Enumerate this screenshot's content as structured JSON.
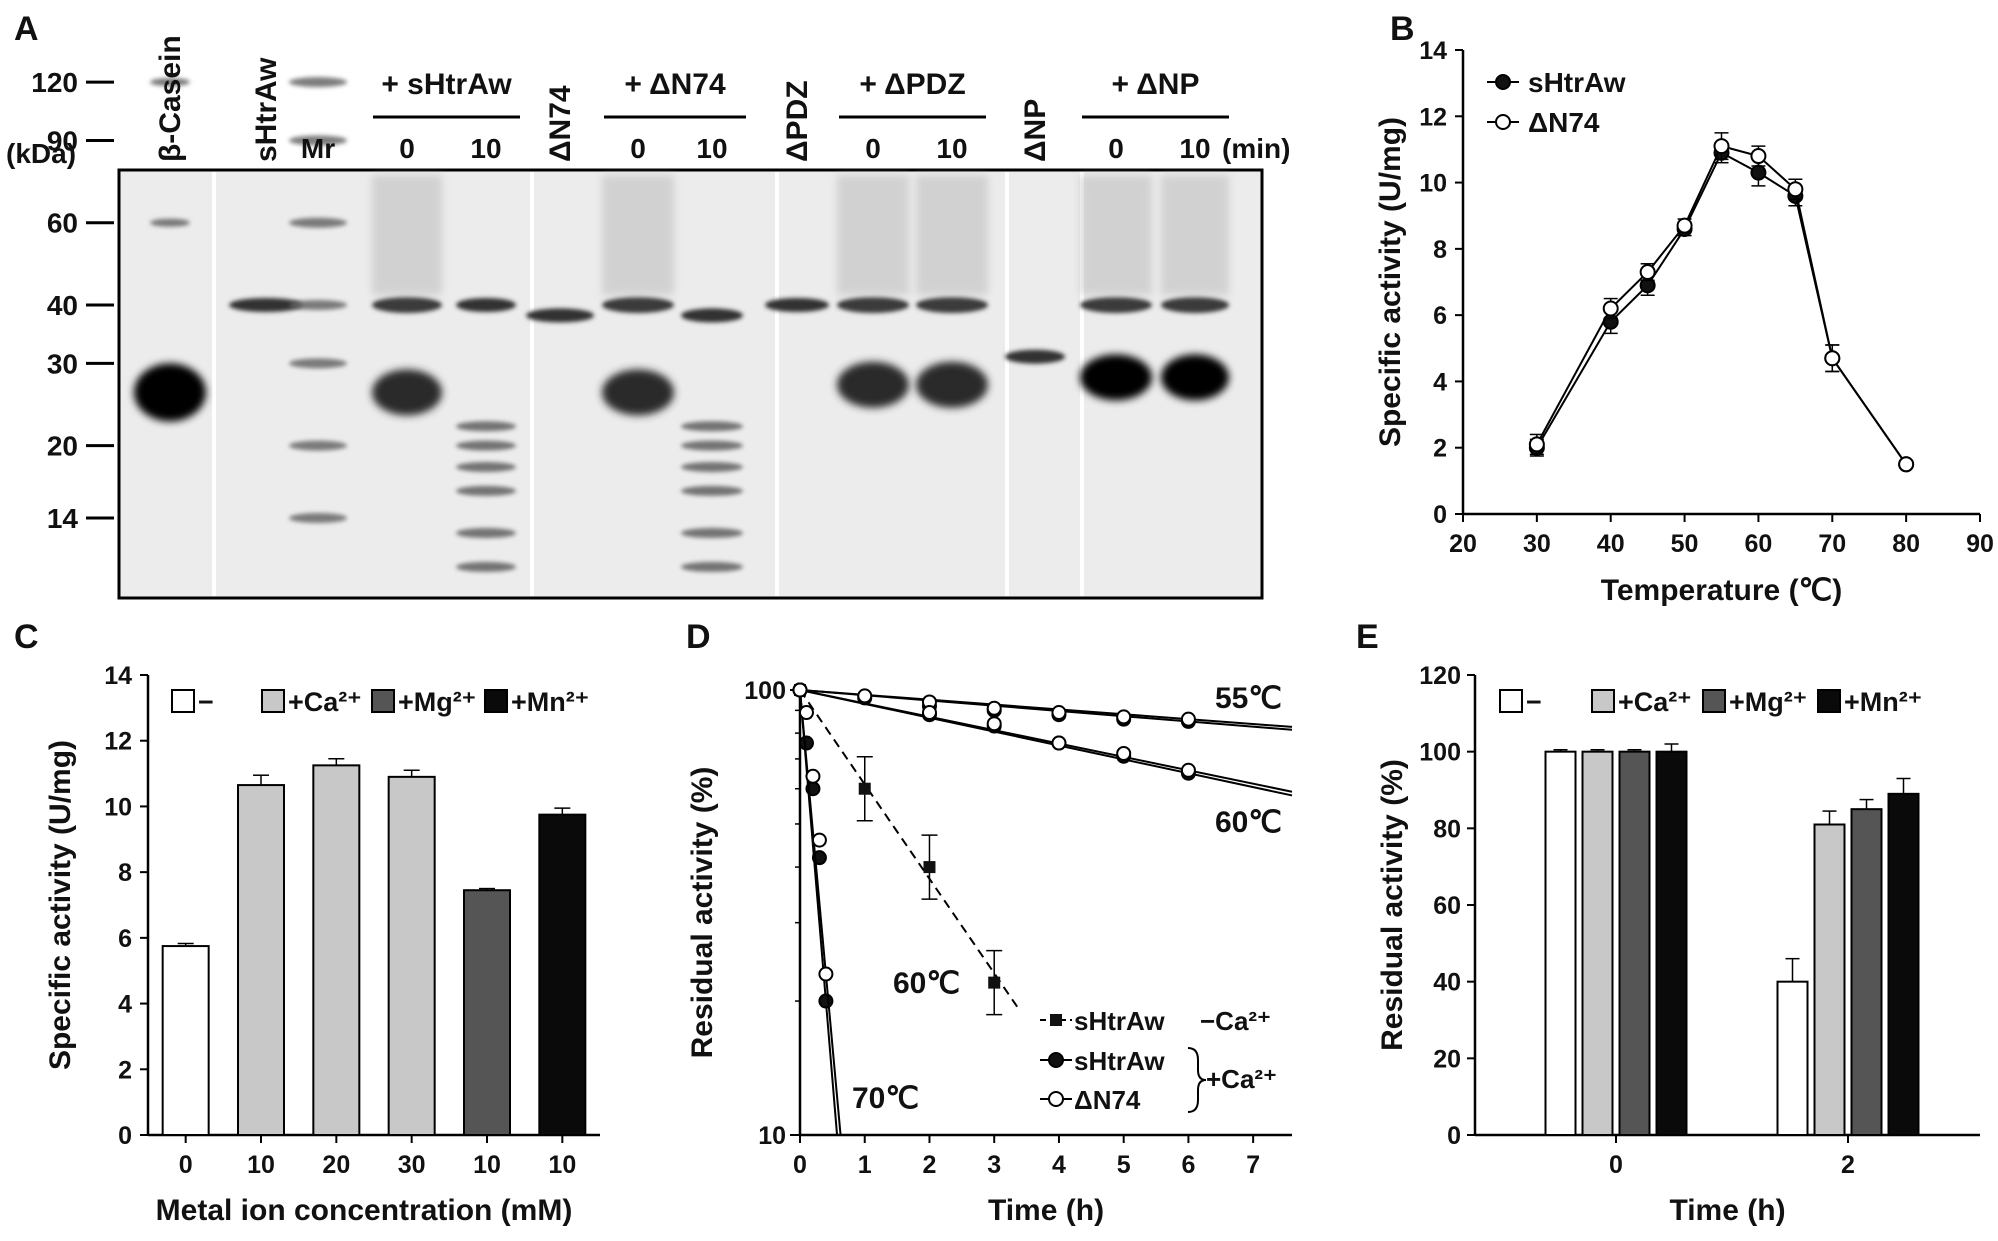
{
  "panel_labels": [
    "A",
    "B",
    "C",
    "D",
    "E"
  ],
  "chart_data": [
    {
      "panel": "A",
      "type": "gel",
      "kda_label": "(kDa)",
      "time_unit_label": "(min)",
      "markers_kDa": [
        120,
        90,
        60,
        40,
        30,
        20,
        14
      ],
      "lanes": [
        {
          "label": "β-Casein",
          "main_band_kDa": 26
        },
        {
          "label": "sHtrAw",
          "main_band_kDa": 40
        },
        {
          "label": "Mr",
          "main_band_kDa": null
        },
        {
          "group": "+ sHtrAw",
          "label": "0",
          "main_band_kDa": 26
        },
        {
          "group": "+ sHtrAw",
          "label": "10",
          "main_band_kDa": 40
        },
        {
          "label": "ΔN74",
          "main_band_kDa": 38
        },
        {
          "group": "+ ΔN74",
          "label": "0",
          "main_band_kDa": 26
        },
        {
          "group": "+ ΔN74",
          "label": "10",
          "main_band_kDa": 38
        },
        {
          "label": "ΔPDZ",
          "main_band_kDa": 40
        },
        {
          "group": "+ ΔPDZ",
          "label": "0",
          "main_band_kDa": 27
        },
        {
          "group": "+ ΔPDZ",
          "label": "10",
          "main_band_kDa": 27
        },
        {
          "label": "ΔNP",
          "main_band_kDa": 31
        },
        {
          "group": "+ ΔNP",
          "label": "0",
          "main_band_kDa": 28
        },
        {
          "group": "+ ΔNP",
          "label": "10",
          "main_band_kDa": 28
        }
      ]
    },
    {
      "panel": "B",
      "type": "line",
      "xlabel": "Temperature (℃)",
      "ylabel": "Specific activity (U/mg)",
      "xlim": [
        20,
        90
      ],
      "ylim": [
        0,
        14
      ],
      "xticks": [
        20,
        30,
        40,
        50,
        60,
        70,
        80,
        90
      ],
      "yticks": [
        0,
        2,
        4,
        6,
        8,
        10,
        12,
        14
      ],
      "legend_position": "top-left",
      "x": [
        30,
        40,
        45,
        50,
        55,
        60,
        65,
        70,
        80
      ],
      "series": [
        {
          "name": "sHtrAw",
          "marker": "filled-circle",
          "values": [
            2.0,
            5.8,
            6.9,
            8.6,
            10.9,
            10.3,
            9.6,
            4.7,
            1.5
          ],
          "errors": [
            0.25,
            0.35,
            0.3,
            0.2,
            0.3,
            0.4,
            0.3,
            0.4,
            0.1
          ]
        },
        {
          "name": "ΔN74",
          "marker": "open-circle",
          "values": [
            2.1,
            6.2,
            7.3,
            8.7,
            11.1,
            10.8,
            9.8,
            4.7,
            1.5
          ],
          "errors": [
            0.3,
            0.3,
            0.25,
            0.2,
            0.4,
            0.3,
            0.3,
            0.4,
            0.1
          ]
        }
      ]
    },
    {
      "panel": "C",
      "type": "bar",
      "xlabel": "Metal ion concentration (mM)",
      "ylabel": "Specific activity (U/mg)",
      "ylim": [
        0,
        14
      ],
      "yticks": [
        0,
        2,
        4,
        6,
        8,
        10,
        12,
        14
      ],
      "categories": [
        "0",
        "10",
        "20",
        "30",
        "10",
        "10"
      ],
      "values": [
        5.75,
        10.65,
        11.25,
        10.9,
        7.45,
        9.75
      ],
      "errors": [
        0.08,
        0.3,
        0.2,
        0.2,
        0.05,
        0.2
      ],
      "bar_groups": [
        "−",
        "+Ca²⁺",
        "+Ca²⁺",
        "+Ca²⁺",
        "+Mg²⁺",
        "+Mn²⁺"
      ],
      "legend": [
        {
          "label": "−",
          "color": "#ffffff"
        },
        {
          "label": "+Ca²⁺",
          "color": "#c8c8c8"
        },
        {
          "label": "+Mg²⁺",
          "color": "#555555"
        },
        {
          "label": "+Mn²⁺",
          "color": "#0a0a0a"
        }
      ],
      "legend_position": "top"
    },
    {
      "panel": "D",
      "type": "line",
      "xlabel": "Time (h)",
      "ylabel": "Residual activity (%)",
      "xlim": [
        0,
        7.6
      ],
      "ylim": [
        10,
        100
      ],
      "yscale": "log",
      "xticks": [
        0,
        1,
        2,
        3,
        4,
        5,
        6,
        7
      ],
      "yticks": [
        10,
        100
      ],
      "annotations": [
        "55℃",
        "60℃",
        "60℃",
        "70℃"
      ],
      "legend": {
        "entries": [
          "sHtrAw",
          "sHtrAw",
          "ΔN74"
        ],
        "group_labels": [
          "−Ca²⁺",
          "+Ca²⁺"
        ]
      },
      "series": [
        {
          "name": "sHtrAw",
          "condition": "−Ca²⁺",
          "temperature": "60℃",
          "marker": "filled-square",
          "style": "dashed",
          "x": [
            0,
            1,
            2,
            3
          ],
          "y": [
            100,
            60,
            40,
            22
          ]
        },
        {
          "name": "sHtrAw",
          "condition": "+Ca²⁺",
          "temperature": "55℃",
          "marker": "filled-circle",
          "x": [
            0,
            1,
            2,
            3,
            4,
            5,
            6
          ],
          "y": [
            100,
            96,
            92,
            90,
            88,
            86,
            85
          ]
        },
        {
          "name": "ΔN74",
          "condition": "+Ca²⁺",
          "temperature": "55℃",
          "marker": "open-circle",
          "x": [
            0,
            1,
            2,
            3,
            4,
            5,
            6
          ],
          "y": [
            100,
            97,
            94,
            91,
            89,
            87,
            86
          ]
        },
        {
          "name": "sHtrAw",
          "condition": "+Ca²⁺",
          "temperature": "60℃",
          "marker": "filled-circle",
          "x": [
            0,
            2,
            3,
            4,
            5,
            6
          ],
          "y": [
            100,
            88,
            83,
            76,
            71,
            65
          ]
        },
        {
          "name": "ΔN74",
          "condition": "+Ca²⁺",
          "temperature": "60℃",
          "marker": "open-circle",
          "x": [
            0,
            2,
            3,
            4,
            5,
            6
          ],
          "y": [
            100,
            89,
            84,
            76,
            72,
            66
          ]
        },
        {
          "name": "sHtrAw",
          "condition": "+Ca²⁺",
          "temperature": "70℃",
          "marker": "filled-circle",
          "x": [
            0,
            0.1,
            0.2,
            0.3,
            0.4
          ],
          "y": [
            100,
            76,
            60,
            42,
            20
          ]
        },
        {
          "name": "ΔN74",
          "condition": "+Ca²⁺",
          "temperature": "70℃",
          "marker": "open-circle",
          "x": [
            0,
            0.1,
            0.2,
            0.3,
            0.4
          ],
          "y": [
            100,
            89,
            64,
            46,
            23
          ]
        }
      ]
    },
    {
      "panel": "E",
      "type": "bar",
      "xlabel": "Time (h)",
      "ylabel": "Residual activity (%)",
      "ylim": [
        0,
        120
      ],
      "yticks": [
        0,
        20,
        40,
        60,
        80,
        100,
        120
      ],
      "categories": [
        "0",
        "2"
      ],
      "series": [
        {
          "name": "−",
          "color": "#ffffff",
          "values": [
            100,
            40
          ],
          "errors": [
            0.5,
            6
          ]
        },
        {
          "name": "+Ca²⁺",
          "color": "#c8c8c8",
          "values": [
            100,
            81
          ],
          "errors": [
            0.5,
            3.5
          ]
        },
        {
          "name": "+Mg²⁺",
          "color": "#555555",
          "values": [
            100,
            85
          ],
          "errors": [
            0.5,
            2.5
          ]
        },
        {
          "name": "+Mn²⁺",
          "color": "#0a0a0a",
          "values": [
            100,
            89
          ],
          "errors": [
            2,
            4
          ]
        }
      ],
      "legend_position": "top"
    }
  ]
}
